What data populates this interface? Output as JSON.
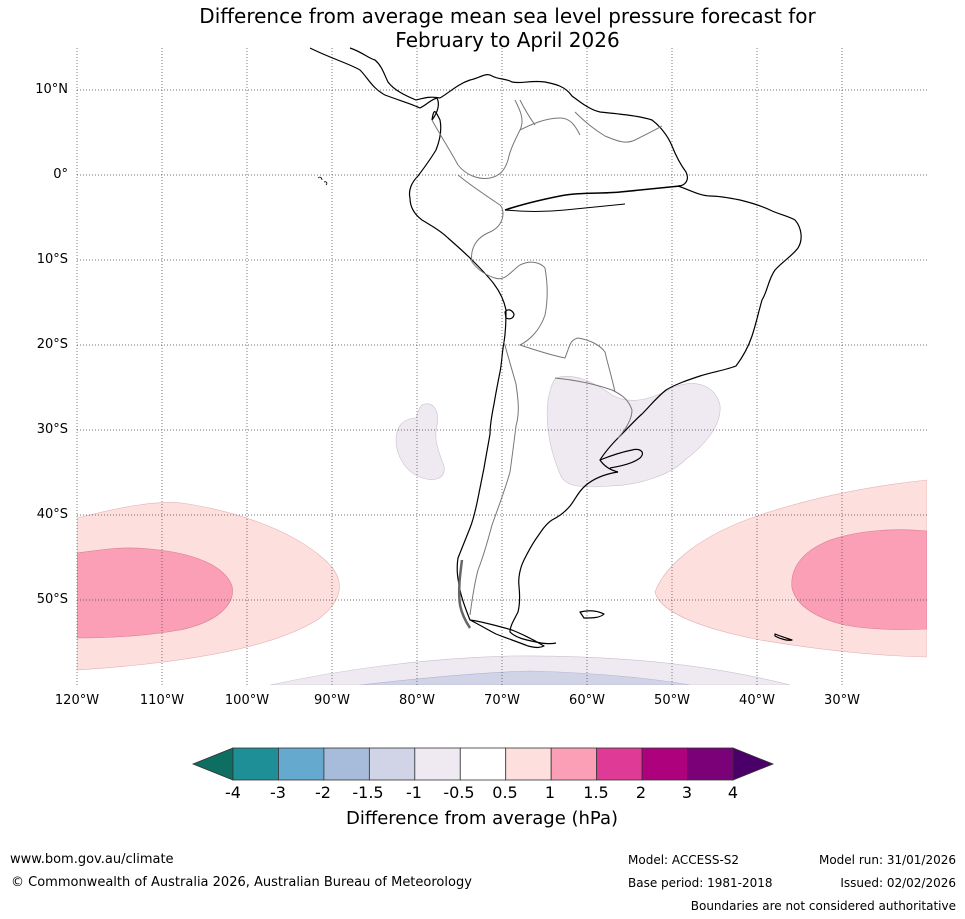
{
  "title": {
    "line1": "Difference from average mean sea level pressure forecast for",
    "line2": "February to April 2026"
  },
  "map": {
    "lat_labels": [
      "10°N",
      "0°",
      "10°S",
      "20°S",
      "30°S",
      "40°S",
      "50°S"
    ],
    "lon_labels": [
      "120°W",
      "110°W",
      "100°W",
      "90°W",
      "80°W",
      "70°W",
      "60°W",
      "50°W",
      "40°W",
      "30°W"
    ],
    "extent": {
      "lon_min": -120,
      "lon_max": -20,
      "lat_min": -60,
      "lat_max": 15
    },
    "anomaly_regions": [
      {
        "name": "Pacific high anomaly",
        "level_hpa": "0.5 to 1.5",
        "center": "50°S 113°W"
      },
      {
        "name": "Atlantic high anomaly",
        "level_hpa": "0.5 to 1.5",
        "center": "48°S 25°W"
      },
      {
        "name": "Southern Brazil / Uruguay weak low anomaly",
        "level_hpa": "-1 to -0.5",
        "center": "30°S 57°W"
      },
      {
        "name": "Pacific weak low anomaly",
        "level_hpa": "-1 to -0.5",
        "center": "31°S 80°W"
      },
      {
        "name": "Southern Ocean low anomaly",
        "level_hpa": "-1.5 to -0.5",
        "center": "60°S 70°W"
      }
    ]
  },
  "colorbar": {
    "ticks": [
      "-4",
      "-3",
      "-2",
      "-1.5",
      "-1",
      "-0.5",
      "0.5",
      "1",
      "1.5",
      "2",
      "3",
      "4"
    ],
    "colors": [
      "#1e8f96",
      "#66a9cf",
      "#a6bcda",
      "#d1d3e6",
      "#efeaf1",
      "#ffffff",
      "#fde0dd",
      "#fa9fb5",
      "#e03a97",
      "#ae017e",
      "#7a0177"
    ],
    "under_color": "#0f6e62",
    "over_color": "#4a0068",
    "label": "Difference from average (hPa)"
  },
  "footer": {
    "website": "www.bom.gov.au/climate",
    "copyright": "© Commonwealth of Australia 2026, Australian Bureau of Meteorology",
    "model": "Model: ACCESS-S2",
    "base_period": "Base period: 1981-2018",
    "model_run": "Model run: 31/01/2026",
    "issued": "Issued: 02/02/2026",
    "disclaimer": "Boundaries are not considered authoritative"
  }
}
